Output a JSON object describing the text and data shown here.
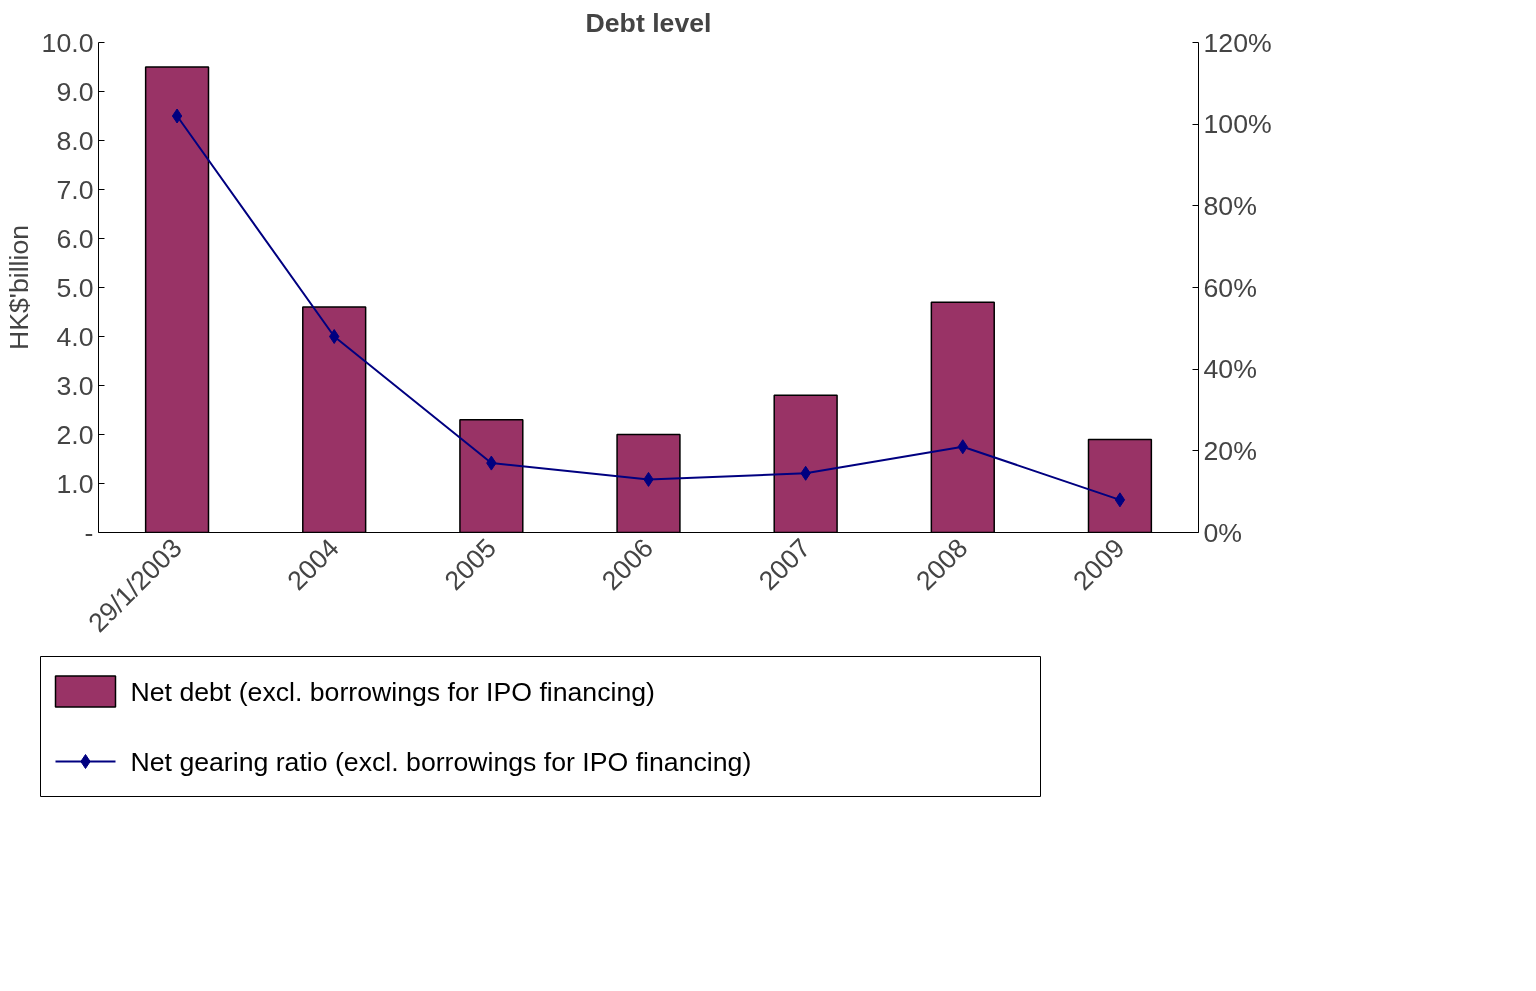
{
  "chart_data": {
    "type": "bar",
    "title": "Debt level",
    "ylabel": "HK$'billion",
    "categories": [
      "29/1/2003",
      "2004",
      "2005",
      "2006",
      "2007",
      "2008",
      "2009"
    ],
    "series": [
      {
        "name": "Net debt (excl. borrowings for IPO financing)",
        "color": "#993366",
        "values": [
          9.5,
          4.6,
          2.3,
          2.0,
          2.8,
          4.7,
          1.9
        ]
      },
      {
        "name": "Net gearing ratio (excl. borrowings for IPO financing)",
        "type": "line",
        "axis": "y2",
        "color": "#000080",
        "marker": "diamond",
        "values": [
          102,
          48,
          17,
          13,
          14.5,
          21,
          8
        ]
      }
    ],
    "ylim": [
      0,
      10
    ],
    "yticks": [
      {
        "value": 0,
        "label": "-"
      },
      {
        "value": 1,
        "label": "1.0"
      },
      {
        "value": 2,
        "label": "2.0"
      },
      {
        "value": 3,
        "label": "3.0"
      },
      {
        "value": 4,
        "label": "4.0"
      },
      {
        "value": 5,
        "label": "5.0"
      },
      {
        "value": 6,
        "label": "6.0"
      },
      {
        "value": 7,
        "label": "7.0"
      },
      {
        "value": 8,
        "label": "8.0"
      },
      {
        "value": 9,
        "label": "9.0"
      },
      {
        "value": 10,
        "label": "10.0"
      }
    ],
    "y2lim": [
      0,
      120
    ],
    "y2ticks": [
      {
        "value": 0,
        "label": "0%"
      },
      {
        "value": 20,
        "label": "20%"
      },
      {
        "value": 40,
        "label": "40%"
      },
      {
        "value": 60,
        "label": "60%"
      },
      {
        "value": 80,
        "label": "80%"
      },
      {
        "value": 100,
        "label": "100%"
      },
      {
        "value": 120,
        "label": "120%"
      }
    ],
    "grid": false,
    "legend": "bottom"
  }
}
